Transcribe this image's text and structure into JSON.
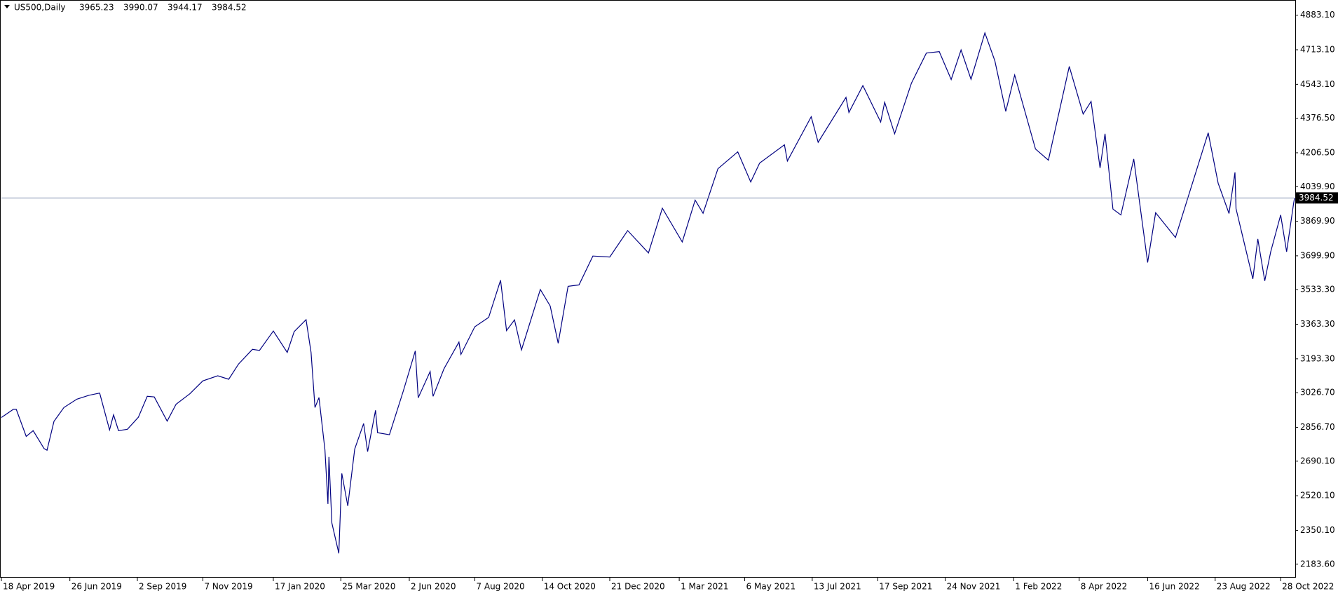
{
  "chart_data": {
    "type": "line",
    "header": {
      "symbol": "US500,Daily",
      "open": 3965.23,
      "high": 3990.07,
      "low": 3944.17,
      "close": 3984.52
    },
    "color": "#000080",
    "price_line_color": "#8090b0",
    "x": [
      "2019-04-18",
      "2019-04-30",
      "2019-05-03",
      "2019-05-13",
      "2019-05-20",
      "2019-05-31",
      "2019-06-03",
      "2019-06-10",
      "2019-06-20",
      "2019-07-03",
      "2019-07-15",
      "2019-07-26",
      "2019-08-05",
      "2019-08-09",
      "2019-08-14",
      "2019-08-23",
      "2019-09-03",
      "2019-09-12",
      "2019-09-19",
      "2019-10-02",
      "2019-10-11",
      "2019-10-25",
      "2019-11-07",
      "2019-11-22",
      "2019-12-03",
      "2019-12-13",
      "2019-12-27",
      "2020-01-03",
      "2020-01-17",
      "2020-01-31",
      "2020-02-07",
      "2020-02-19",
      "2020-02-24",
      "2020-02-28",
      "2020-03-03",
      "2020-03-09",
      "2020-03-12",
      "2020-03-13",
      "2020-03-16",
      "2020-03-23",
      "2020-03-26",
      "2020-04-01",
      "2020-04-08",
      "2020-04-17",
      "2020-04-21",
      "2020-04-29",
      "2020-05-01",
      "2020-05-13",
      "2020-05-27",
      "2020-06-08",
      "2020-06-11",
      "2020-06-23",
      "2020-06-26",
      "2020-07-07",
      "2020-07-22",
      "2020-07-24",
      "2020-08-07",
      "2020-08-21",
      "2020-09-02",
      "2020-09-08",
      "2020-09-16",
      "2020-09-23",
      "2020-10-12",
      "2020-10-22",
      "2020-10-30",
      "2020-11-09",
      "2020-11-20",
      "2020-12-04",
      "2020-12-21",
      "2021-01-08",
      "2021-01-29",
      "2021-02-12",
      "2021-03-04",
      "2021-03-17",
      "2021-03-25",
      "2021-04-09",
      "2021-04-29",
      "2021-05-12",
      "2021-05-21",
      "2021-06-15",
      "2021-06-18",
      "2021-07-12",
      "2021-07-19",
      "2021-08-16",
      "2021-08-19",
      "2021-09-02",
      "2021-09-20",
      "2021-09-24",
      "2021-10-04",
      "2021-10-21",
      "2021-11-05",
      "2021-11-18",
      "2021-11-30",
      "2021-12-10",
      "2021-12-20",
      "2022-01-03",
      "2022-01-13",
      "2022-01-24",
      "2022-02-02",
      "2022-02-23",
      "2022-03-08",
      "2022-03-29",
      "2022-04-12",
      "2022-04-20",
      "2022-04-29",
      "2022-05-04",
      "2022-05-12",
      "2022-05-20",
      "2022-06-02",
      "2022-06-16",
      "2022-06-24",
      "2022-07-14",
      "2022-08-16",
      "2022-08-26",
      "2022-09-06",
      "2022-09-12",
      "2022-09-13",
      "2022-09-30",
      "2022-10-05",
      "2022-10-12",
      "2022-10-18",
      "2022-10-28",
      "2022-11-03",
      "2022-11-10",
      "2022-11-11"
    ],
    "values": [
      2905,
      2945,
      2945,
      2812,
      2840,
      2752,
      2744,
      2886,
      2954,
      2995,
      3014,
      3025,
      2844,
      2918,
      2840,
      2847,
      2906,
      3009,
      3006,
      2887,
      2970,
      3022,
      3085,
      3110,
      3093,
      3168,
      3240,
      3235,
      3330,
      3225,
      3327,
      3386,
      3225,
      2954,
      3003,
      2746,
      2480,
      2711,
      2386,
      2237,
      2630,
      2470,
      2750,
      2875,
      2737,
      2940,
      2830,
      2820,
      3036,
      3232,
      3002,
      3131,
      3009,
      3145,
      3276,
      3215,
      3351,
      3397,
      3580,
      3332,
      3385,
      3237,
      3534,
      3453,
      3270,
      3550,
      3557,
      3699,
      3694,
      3824,
      3714,
      3934,
      3768,
      3974,
      3909,
      4128,
      4211,
      4063,
      4156,
      4246,
      4166,
      4384,
      4258,
      4479,
      4405,
      4537,
      4358,
      4455,
      4300,
      4549,
      4697,
      4704,
      4567,
      4712,
      4568,
      4796,
      4659,
      4410,
      4589,
      4225,
      4170,
      4631,
      4397,
      4459,
      4132,
      4300,
      3930,
      3901,
      4176,
      3667,
      3912,
      3790,
      4305,
      4057,
      3908,
      4110,
      3932,
      3586,
      3783,
      3577,
      3720,
      3901,
      3720,
      3956,
      3984.52
    ],
    "xlim": [
      "2019-04-18",
      "2022-11-11"
    ],
    "xticks": [
      {
        "value": "2019-04-18",
        "label": "18 Apr 2019"
      },
      {
        "value": "2019-06-26",
        "label": "26 Jun 2019"
      },
      {
        "value": "2019-09-02",
        "label": "2 Sep 2019"
      },
      {
        "value": "2019-11-07",
        "label": "7 Nov 2019"
      },
      {
        "value": "2020-01-17",
        "label": "17 Jan 2020"
      },
      {
        "value": "2020-03-25",
        "label": "25 Mar 2020"
      },
      {
        "value": "2020-06-02",
        "label": "2 Jun 2020"
      },
      {
        "value": "2020-08-07",
        "label": "7 Aug 2020"
      },
      {
        "value": "2020-10-14",
        "label": "14 Oct 2020"
      },
      {
        "value": "2020-12-21",
        "label": "21 Dec 2020"
      },
      {
        "value": "2021-03-01",
        "label": "1 Mar 2021"
      },
      {
        "value": "2021-05-06",
        "label": "6 May 2021"
      },
      {
        "value": "2021-07-13",
        "label": "13 Jul 2021"
      },
      {
        "value": "2021-09-17",
        "label": "17 Sep 2021"
      },
      {
        "value": "2021-11-24",
        "label": "24 Nov 2021"
      },
      {
        "value": "2022-02-01",
        "label": "1 Feb 2022"
      },
      {
        "value": "2022-04-08",
        "label": "8 Apr 2022"
      },
      {
        "value": "2022-06-16",
        "label": "16 Jun 2022"
      },
      {
        "value": "2022-08-23",
        "label": "23 Aug 2022"
      },
      {
        "value": "2022-10-28",
        "label": "28 Oct 2022"
      }
    ],
    "ylim": [
      2120.7,
      4954.4
    ],
    "yticks": [
      {
        "value": 4883.1,
        "label": "4883.10"
      },
      {
        "value": 4713.1,
        "label": "4713.10"
      },
      {
        "value": 4543.1,
        "label": "4543.10"
      },
      {
        "value": 4376.5,
        "label": "4376.50"
      },
      {
        "value": 4206.5,
        "label": "4206.50"
      },
      {
        "value": 4039.9,
        "label": "4039.90"
      },
      {
        "value": 3869.9,
        "label": "3869.90"
      },
      {
        "value": 3699.9,
        "label": "3699.90"
      },
      {
        "value": 3533.3,
        "label": "3533.30"
      },
      {
        "value": 3363.3,
        "label": "3363.30"
      },
      {
        "value": 3193.3,
        "label": "3193.30"
      },
      {
        "value": 3026.7,
        "label": "3026.70"
      },
      {
        "value": 2856.7,
        "label": "2856.70"
      },
      {
        "value": 2690.1,
        "label": "2690.10"
      },
      {
        "value": 2520.1,
        "label": "2520.10"
      },
      {
        "value": 2350.1,
        "label": "2350.10"
      },
      {
        "value": 2183.6,
        "label": "2183.60"
      }
    ]
  }
}
